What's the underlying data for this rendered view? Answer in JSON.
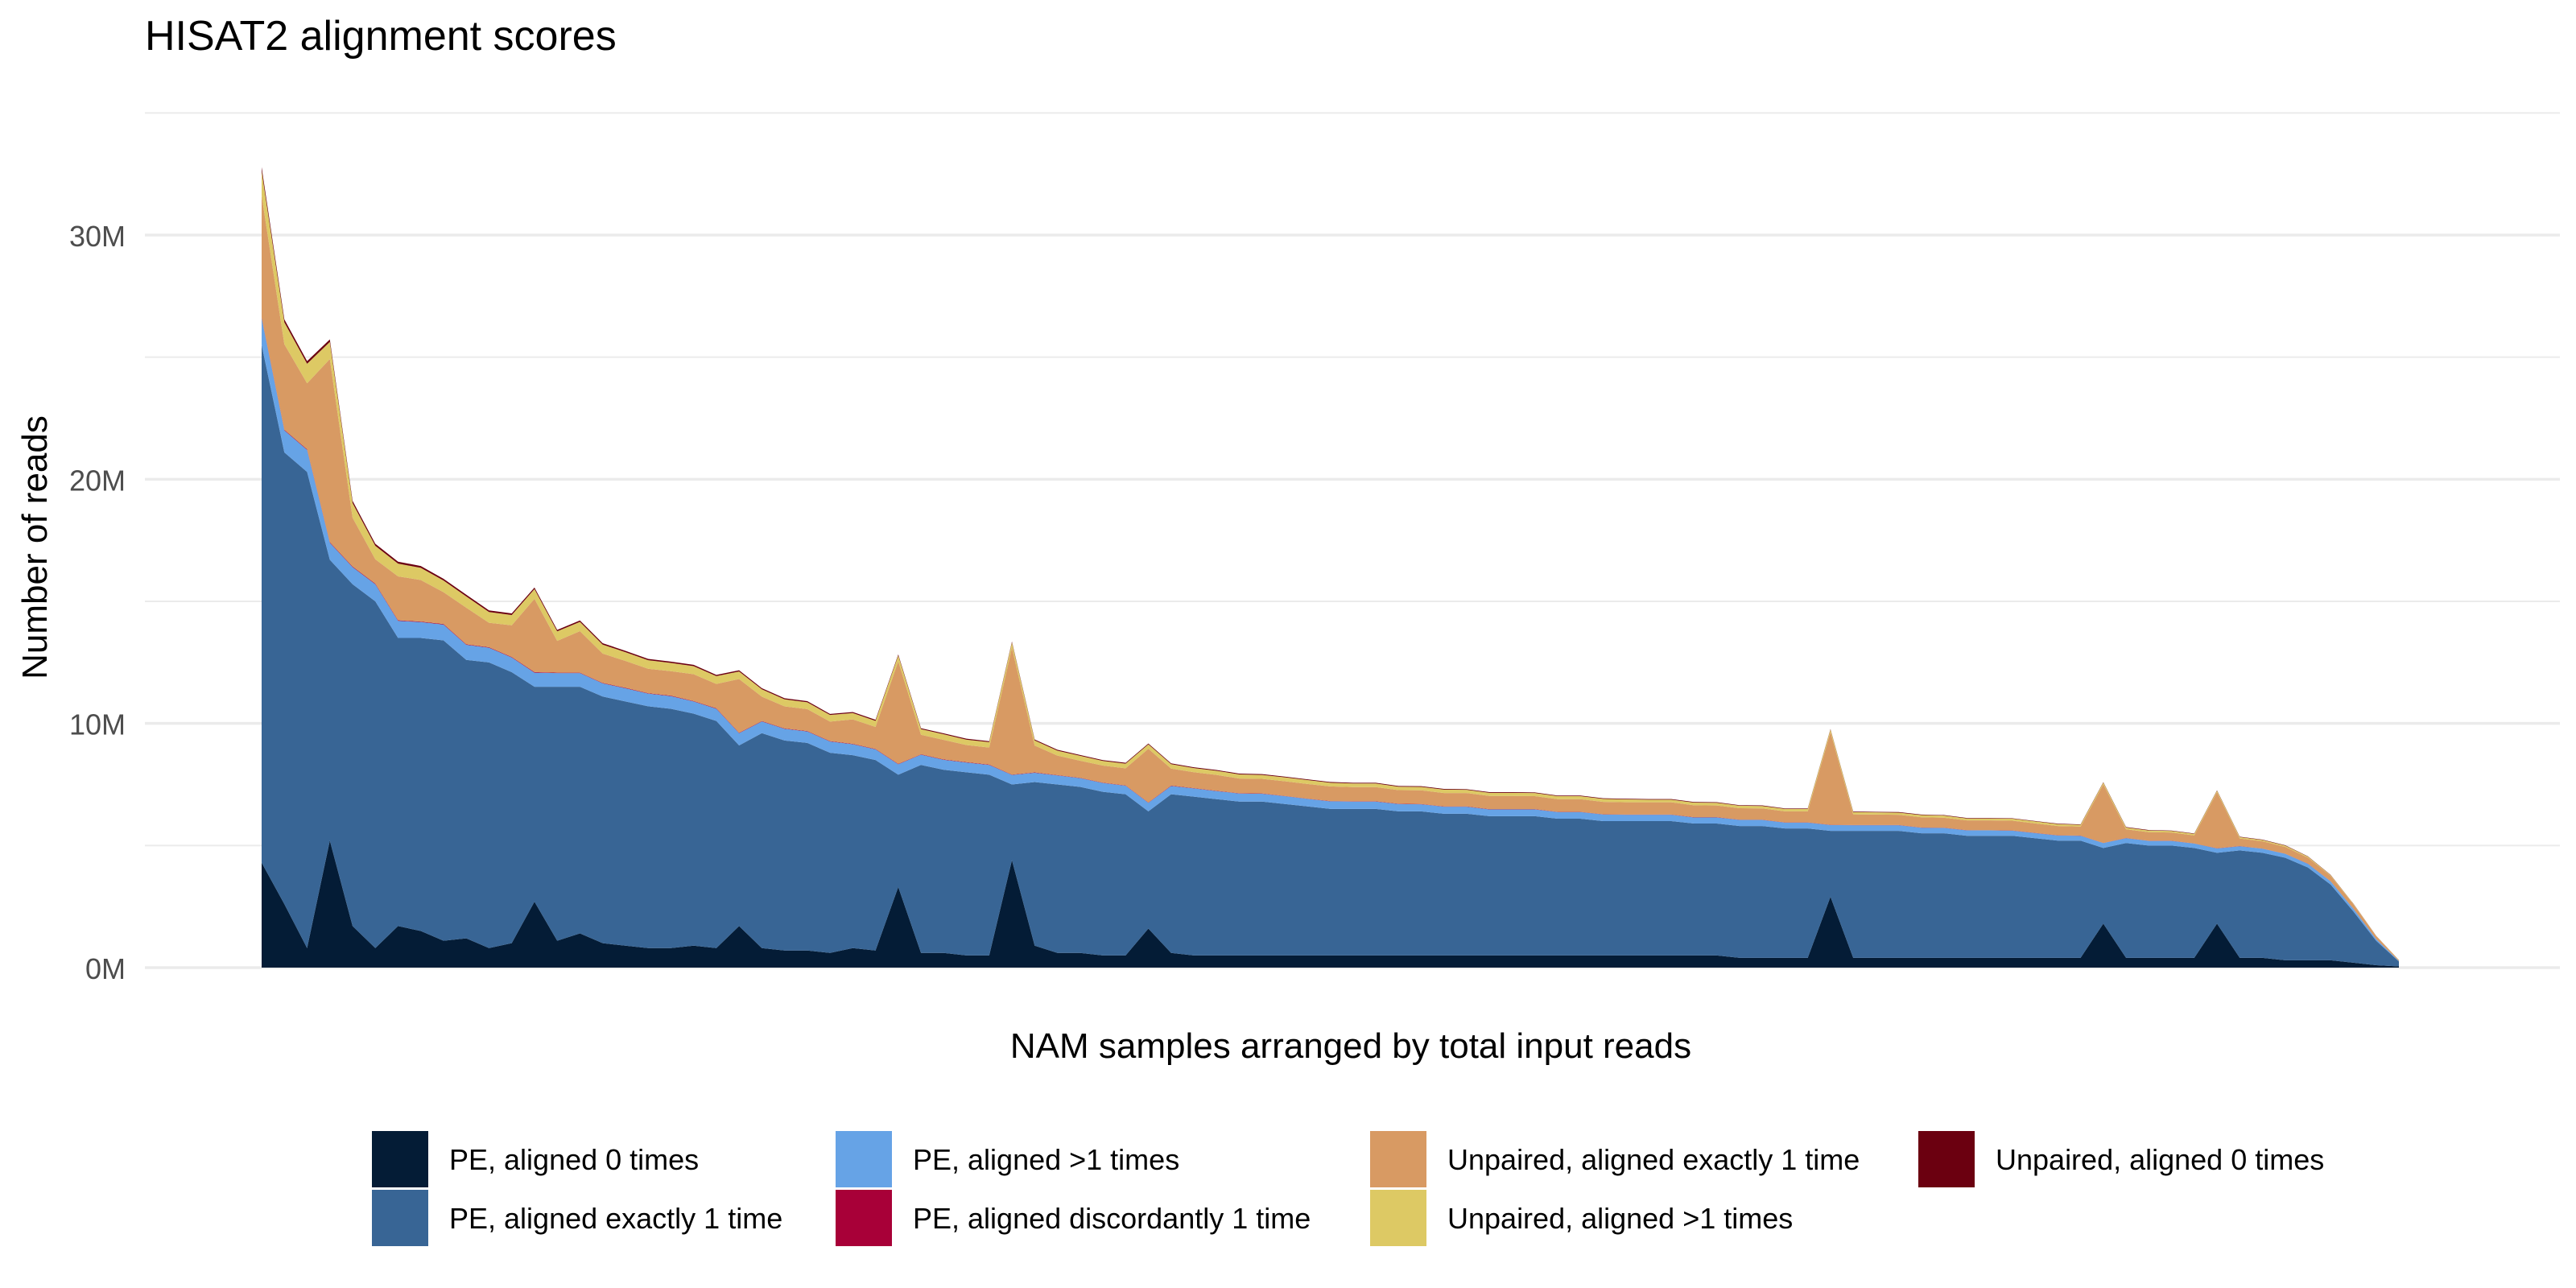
{
  "chart_data": {
    "type": "area",
    "stacked": true,
    "title": "HISAT2 alignment scores",
    "xlabel": "NAM samples arranged by total input reads",
    "ylabel": "Number of reads",
    "ylim": [
      0,
      36000000
    ],
    "yticks": [
      {
        "value": 0,
        "label": "0M"
      },
      {
        "value": 10000000,
        "label": "10M"
      },
      {
        "value": 20000000,
        "label": "20M"
      },
      {
        "value": 30000000,
        "label": "30M"
      }
    ],
    "grid": true,
    "legend_position": "bottom",
    "legend": [
      {
        "name": "PE, aligned 0 times",
        "color": "#041c36"
      },
      {
        "name": "PE, aligned exactly 1 time",
        "color": "#386595"
      },
      {
        "name": "PE, aligned >1 times",
        "color": "#66a3e6"
      },
      {
        "name": "PE, aligned discordantly 1 time",
        "color": "#a80038"
      },
      {
        "name": "Unpaired, aligned exactly 1 time",
        "color": "#d89a63"
      },
      {
        "name": "Unpaired, aligned >1 times",
        "color": "#ddc964"
      },
      {
        "name": "Unpaired, aligned 0 times",
        "color": "#6b0010"
      }
    ],
    "x": [
      1,
      7,
      13,
      19,
      25,
      31,
      37,
      43,
      49,
      55,
      61,
      67,
      73,
      79,
      85,
      91,
      97,
      103,
      109,
      115,
      121,
      127,
      133,
      139,
      145,
      151,
      157,
      163,
      169,
      175,
      181,
      187,
      193,
      199,
      205,
      211,
      217,
      223,
      229,
      235,
      241,
      247,
      253,
      259,
      265,
      271,
      277,
      283,
      289,
      295,
      301,
      307,
      313,
      319,
      325,
      331,
      337,
      343,
      349,
      355,
      361,
      367,
      373,
      379,
      385,
      391,
      397,
      403,
      409,
      415,
      421,
      427,
      433,
      439,
      445,
      451,
      457,
      463,
      469,
      475,
      481,
      487,
      493,
      499,
      505,
      511,
      517,
      523,
      529,
      535,
      541,
      547,
      553,
      559,
      565
    ],
    "series": [
      {
        "name": "PE, aligned 0 times",
        "values": [
          4300000,
          2600000,
          800000,
          5200000,
          1700000,
          800000,
          1700000,
          1500000,
          1100000,
          1200000,
          800000,
          1000000,
          2700000,
          1100000,
          1400000,
          1000000,
          900000,
          800000,
          800000,
          900000,
          800000,
          1700000,
          800000,
          700000,
          700000,
          600000,
          800000,
          700000,
          3300000,
          600000,
          600000,
          500000,
          500000,
          4400000,
          900000,
          600000,
          600000,
          500000,
          500000,
          1600000,
          600000,
          500000,
          500000,
          500000,
          500000,
          500000,
          500000,
          500000,
          500000,
          500000,
          500000,
          500000,
          500000,
          500000,
          500000,
          500000,
          500000,
          500000,
          500000,
          500000,
          500000,
          500000,
          500000,
          500000,
          500000,
          400000,
          400000,
          400000,
          400000,
          2900000,
          400000,
          400000,
          400000,
          400000,
          400000,
          400000,
          400000,
          400000,
          400000,
          400000,
          400000,
          1800000,
          400000,
          400000,
          400000,
          400000,
          1800000,
          400000,
          400000,
          300000,
          300000,
          300000,
          200000,
          100000,
          50000
        ]
      },
      {
        "name": "PE, aligned exactly 1 time",
        "values": [
          21200000,
          18500000,
          19500000,
          11500000,
          14000000,
          14200000,
          11800000,
          12000000,
          12300000,
          11400000,
          11700000,
          11100000,
          8800000,
          10400000,
          10100000,
          10100000,
          10000000,
          9900000,
          9800000,
          9500000,
          9300000,
          7400000,
          8800000,
          8600000,
          8500000,
          8200000,
          7900000,
          7800000,
          4600000,
          7700000,
          7500000,
          7500000,
          7400000,
          3100000,
          6700000,
          6900000,
          6800000,
          6700000,
          6600000,
          4800000,
          6500000,
          6500000,
          6400000,
          6300000,
          6300000,
          6200000,
          6100000,
          6000000,
          6000000,
          6000000,
          5900000,
          5900000,
          5800000,
          5800000,
          5700000,
          5700000,
          5700000,
          5600000,
          5600000,
          5500000,
          5500000,
          5500000,
          5500000,
          5400000,
          5400000,
          5400000,
          5400000,
          5300000,
          5300000,
          2700000,
          5200000,
          5200000,
          5200000,
          5100000,
          5100000,
          5000000,
          5000000,
          5000000,
          4900000,
          4800000,
          4800000,
          3100000,
          4700000,
          4600000,
          4600000,
          4500000,
          2900000,
          4400000,
          4300000,
          4200000,
          3800000,
          3100000,
          2100000,
          1000000,
          200000
        ]
      },
      {
        "name": "PE, aligned >1 times",
        "values": [
          1100000,
          900000,
          900000,
          700000,
          700000,
          700000,
          700000,
          650000,
          650000,
          620000,
          600000,
          600000,
          580000,
          560000,
          560000,
          540000,
          540000,
          520000,
          520000,
          500000,
          500000,
          500000,
          480000,
          480000,
          470000,
          460000,
          450000,
          440000,
          430000,
          420000,
          410000,
          400000,
          400000,
          390000,
          380000,
          370000,
          360000,
          360000,
          350000,
          350000,
          340000,
          340000,
          330000,
          330000,
          320000,
          320000,
          310000,
          310000,
          300000,
          300000,
          300000,
          290000,
          290000,
          290000,
          280000,
          280000,
          280000,
          270000,
          270000,
          270000,
          260000,
          260000,
          260000,
          250000,
          250000,
          250000,
          250000,
          240000,
          240000,
          240000,
          230000,
          230000,
          230000,
          230000,
          220000,
          220000,
          220000,
          210000,
          210000,
          210000,
          200000,
          200000,
          200000,
          190000,
          190000,
          180000,
          180000,
          170000,
          170000,
          160000,
          150000,
          130000,
          110000,
          70000,
          20000
        ]
      },
      {
        "name": "PE, aligned discordantly 1 time",
        "values": [
          30000,
          28000,
          28000,
          25000,
          25000,
          24000,
          24000,
          23000,
          23000,
          22000,
          22000,
          21000,
          21000,
          20000,
          20000,
          20000,
          19000,
          19000,
          19000,
          18000,
          18000,
          18000,
          17000,
          17000,
          17000,
          16000,
          16000,
          16000,
          15000,
          15000,
          15000,
          15000,
          14000,
          14000,
          14000,
          14000,
          13000,
          13000,
          13000,
          13000,
          13000,
          12000,
          12000,
          12000,
          12000,
          12000,
          11000,
          11000,
          11000,
          11000,
          11000,
          11000,
          10000,
          10000,
          10000,
          10000,
          10000,
          10000,
          10000,
          9000,
          9000,
          9000,
          9000,
          9000,
          9000,
          9000,
          9000,
          8000,
          8000,
          8000,
          8000,
          8000,
          8000,
          8000,
          8000,
          8000,
          7000,
          7000,
          7000,
          7000,
          7000,
          7000,
          7000,
          7000,
          6000,
          6000,
          6000,
          6000,
          6000,
          6000,
          5000,
          5000,
          4000,
          3000,
          1000
        ]
      },
      {
        "name": "Unpaired, aligned exactly 1 time",
        "values": [
          5000000,
          3500000,
          2700000,
          7500000,
          2000000,
          1000000,
          1800000,
          1700000,
          1300000,
          1500000,
          1000000,
          1300000,
          3000000,
          1300000,
          1700000,
          1200000,
          1100000,
          1000000,
          1000000,
          1100000,
          1000000,
          2200000,
          1000000,
          900000,
          900000,
          800000,
          1000000,
          900000,
          4200000,
          800000,
          800000,
          700000,
          700000,
          5200000,
          1100000,
          800000,
          700000,
          700000,
          700000,
          2200000,
          700000,
          650000,
          650000,
          600000,
          600000,
          600000,
          600000,
          600000,
          580000,
          580000,
          560000,
          560000,
          550000,
          550000,
          540000,
          540000,
          530000,
          520000,
          520000,
          510000,
          500000,
          500000,
          500000,
          490000,
          480000,
          470000,
          460000,
          450000,
          450000,
          3800000,
          440000,
          430000,
          420000,
          420000,
          410000,
          400000,
          400000,
          400000,
          390000,
          380000,
          370000,
          2400000,
          360000,
          350000,
          340000,
          330000,
          2300000,
          310000,
          300000,
          280000,
          250000,
          220000,
          180000,
          120000,
          40000
        ]
      },
      {
        "name": "Unpaired, aligned >1 times",
        "values": [
          1000000,
          900000,
          800000,
          700000,
          600000,
          550000,
          520000,
          500000,
          480000,
          460000,
          440000,
          420000,
          400000,
          390000,
          380000,
          370000,
          360000,
          350000,
          340000,
          330000,
          320000,
          310000,
          300000,
          290000,
          280000,
          270000,
          260000,
          250000,
          240000,
          230000,
          230000,
          220000,
          220000,
          210000,
          210000,
          200000,
          200000,
          190000,
          190000,
          180000,
          180000,
          170000,
          170000,
          170000,
          160000,
          160000,
          160000,
          150000,
          150000,
          150000,
          140000,
          140000,
          140000,
          130000,
          130000,
          130000,
          130000,
          120000,
          120000,
          120000,
          120000,
          110000,
          110000,
          110000,
          110000,
          100000,
          100000,
          100000,
          100000,
          100000,
          90000,
          90000,
          90000,
          90000,
          90000,
          80000,
          80000,
          80000,
          80000,
          80000,
          70000,
          70000,
          70000,
          70000,
          60000,
          60000,
          60000,
          60000,
          50000,
          50000,
          40000,
          30000,
          20000,
          10000,
          5000
        ]
      },
      {
        "name": "Unpaired, aligned 0 times",
        "values": [
          150000,
          120000,
          110000,
          100000,
          90000,
          85000,
          80000,
          75000,
          72000,
          70000,
          68000,
          65000,
          63000,
          60000,
          58000,
          56000,
          55000,
          54000,
          52000,
          50000,
          49000,
          48000,
          47000,
          46000,
          45000,
          44000,
          43000,
          42000,
          41000,
          40000,
          40000,
          39000,
          38000,
          37000,
          37000,
          36000,
          35000,
          35000,
          34000,
          34000,
          33000,
          33000,
          32000,
          32000,
          31000,
          31000,
          30000,
          30000,
          30000,
          29000,
          29000,
          28000,
          28000,
          28000,
          27000,
          27000,
          26000,
          26000,
          26000,
          25000,
          25000,
          25000,
          24000,
          24000,
          24000,
          23000,
          23000,
          23000,
          22000,
          22000,
          22000,
          21000,
          21000,
          21000,
          20000,
          20000,
          20000,
          19000,
          19000,
          19000,
          18000,
          18000,
          18000,
          17000,
          17000,
          16000,
          16000,
          15000,
          15000,
          14000,
          12000,
          10000,
          8000,
          5000,
          2000
        ]
      }
    ]
  }
}
